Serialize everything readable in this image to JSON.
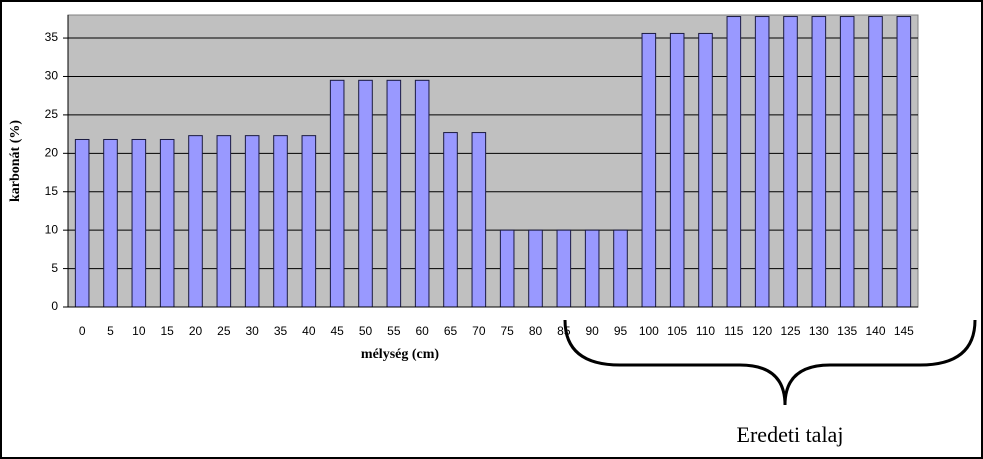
{
  "chart_data": {
    "type": "bar",
    "x_label": "mélység (cm)",
    "y_label": "karbonát (%)",
    "annotation": "Eredeti talaj",
    "categories": [
      "0",
      "5",
      "10",
      "15",
      "20",
      "25",
      "30",
      "35",
      "40",
      "45",
      "50",
      "55",
      "60",
      "65",
      "70",
      "75",
      "80",
      "85",
      "90",
      "95",
      "100",
      "105",
      "110",
      "115",
      "120",
      "125",
      "130",
      "135",
      "140",
      "145"
    ],
    "values": [
      21.8,
      21.8,
      21.8,
      21.8,
      22.3,
      22.3,
      22.3,
      22.3,
      22.3,
      29.5,
      29.5,
      29.5,
      29.5,
      22.7,
      22.7,
      10,
      10,
      10,
      10,
      10,
      35.6,
      35.6,
      35.6,
      37.8,
      37.8,
      37.8,
      37.8,
      37.8,
      37.8,
      37.8
    ],
    "color": "#9999ff",
    "ylim": [
      0,
      38
    ],
    "yticks": [
      0,
      5,
      10,
      15,
      20,
      25,
      30,
      35
    ],
    "grid": true
  }
}
